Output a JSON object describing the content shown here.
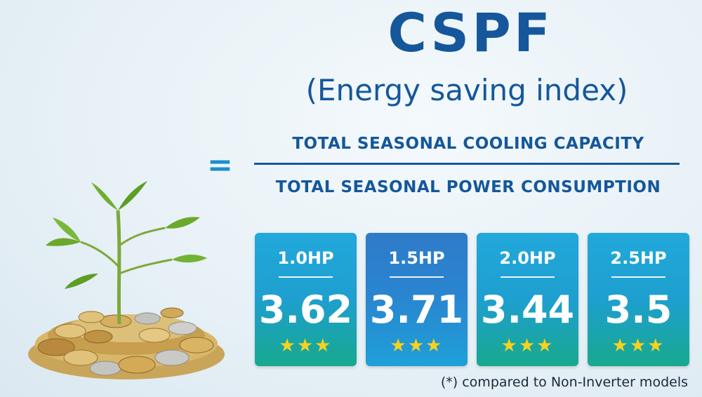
{
  "title": "CSPF",
  "subtitle": "(Energy saving index)",
  "formula": {
    "equals": "=",
    "numerator": "TOTAL SEASONAL COOLING CAPACITY",
    "denominator": "TOTAL SEASONAL POWER CONSUMPTION"
  },
  "cards": [
    {
      "capacity": "1.0HP",
      "value": "3.62",
      "stars": "★★★",
      "star_count": 3
    },
    {
      "capacity": "1.5HP",
      "value": "3.71",
      "stars": "★★★",
      "star_count": 3
    },
    {
      "capacity": "2.0HP",
      "value": "3.44",
      "stars": "★★★",
      "star_count": 3
    },
    {
      "capacity": "2.5HP",
      "value": "3.5",
      "stars": "★★★",
      "star_count": 3
    }
  ],
  "note": "(*) compared to Non-Inverter models",
  "colors": {
    "primary": "#15579a",
    "accent": "#1b8fd0",
    "star": "#f7d21d",
    "card_teal": "#1e9fcf",
    "card_blue": "#2a84cf"
  },
  "illustration": "plant-on-coins-icon"
}
